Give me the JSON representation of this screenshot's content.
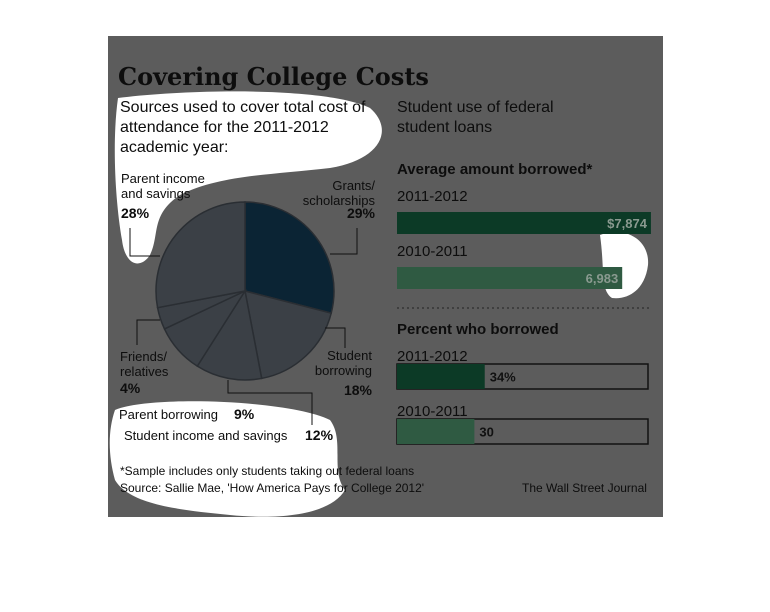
{
  "chart_data": [
    {
      "type": "pie",
      "title": "Covering College Costs",
      "subtitle": "Sources used to cover total cost of attendance for the 2011-2012 academic year:",
      "categories": [
        "Grants/ scholarships",
        "Student borrowing",
        "Student income and savings",
        "Parent borrowing",
        "Friends/ relatives",
        "Parent income and savings"
      ],
      "values": [
        29,
        18,
        12,
        9,
        4,
        28
      ],
      "value_labels": [
        "29%",
        "18%",
        "12%",
        "9%",
        "4%",
        "28%"
      ],
      "colors": [
        "#0b2434",
        "#3b4046",
        "#3b4046",
        "#3b4046",
        "#3b4046",
        "#3b4046"
      ],
      "footnote": "*Sample includes only students taking out federal loans",
      "source": "Source: Sallie Mae, 'How America Pays for College 2012'",
      "credit": "The Wall Street Journal"
    },
    {
      "type": "hbar",
      "section_title": "Student use of federal student loans",
      "title": "Average amount borrowed*",
      "categories": [
        "2011-2012",
        "2010-2011"
      ],
      "values": [
        7874,
        6983
      ],
      "value_labels": [
        "$7,874",
        "6,983"
      ],
      "colors": [
        "#0c3a26",
        "#2f5a42"
      ],
      "xlim": [
        0,
        8000
      ]
    },
    {
      "type": "hbar",
      "title": "Percent who borrowed",
      "categories": [
        "2011-2012",
        "2010-2011"
      ],
      "values": [
        34,
        30
      ],
      "value_labels": [
        "34%",
        "30"
      ],
      "colors": [
        "#0c3a26",
        "#2f5a42"
      ],
      "xlim": [
        0,
        100
      ],
      "outline": true
    }
  ]
}
